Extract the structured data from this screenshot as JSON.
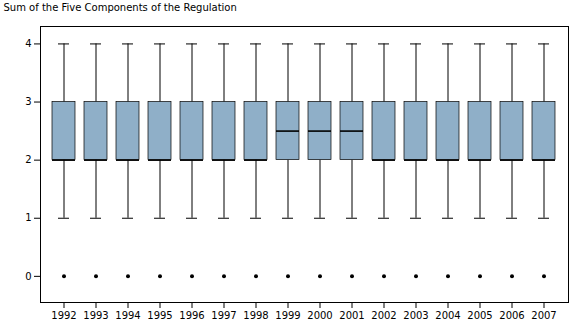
{
  "chart_data": {
    "type": "box",
    "categories": [
      "1992",
      "1993",
      "1994",
      "1995",
      "1996",
      "1997",
      "1998",
      "1999",
      "2000",
      "2001",
      "2002",
      "2003",
      "2004",
      "2005",
      "2006",
      "2007"
    ],
    "whislo": [
      1,
      1,
      1,
      1,
      1,
      1,
      1,
      1,
      1,
      1,
      1,
      1,
      1,
      1,
      1,
      1
    ],
    "q1": [
      2,
      2,
      2,
      2,
      2,
      2,
      2,
      2,
      2,
      2,
      2,
      2,
      2,
      2,
      2,
      2
    ],
    "median": [
      2,
      2,
      2,
      2,
      2,
      2,
      2,
      2.5,
      2.5,
      2.5,
      2,
      2,
      2,
      2,
      2,
      2
    ],
    "q3": [
      3,
      3,
      3,
      3,
      3,
      3,
      3,
      3,
      3,
      3,
      3,
      3,
      3,
      3,
      3,
      3
    ],
    "whishi": [
      4,
      4,
      4,
      4,
      4,
      4,
      4,
      4,
      4,
      4,
      4,
      4,
      4,
      4,
      4,
      4
    ],
    "fliers": [
      0,
      0,
      0,
      0,
      0,
      0,
      0,
      0,
      0,
      0,
      0,
      0,
      0,
      0,
      0,
      0
    ],
    "color": "#8fafc8",
    "ylabel": "Sum of the Five Components of the Regulation",
    "ylim": [
      -0.45,
      4.3
    ],
    "yticks": [
      0,
      1,
      2,
      3,
      4
    ],
    "grid": false
  }
}
